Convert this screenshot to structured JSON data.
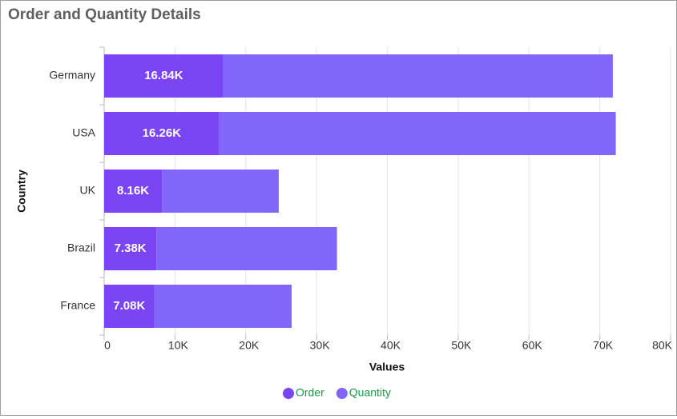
{
  "chart_data": {
    "type": "stacked-bar-horizontal",
    "title": "Order and Quantity Details",
    "x_label": "Values",
    "y_label": "Country",
    "categories": [
      "Germany",
      "USA",
      "UK",
      "Brazil",
      "France"
    ],
    "series": [
      {
        "name": "Order",
        "color": "#7b45f5",
        "values": [
          16840,
          16260,
          8160,
          7380,
          7080
        ],
        "value_labels": [
          "16.84K",
          "16.26K",
          "8.16K",
          "7.38K",
          "7.08K"
        ]
      },
      {
        "name": "Quantity",
        "color": "#8266fa",
        "values": [
          55000,
          56000,
          16500,
          25500,
          19400
        ]
      }
    ],
    "xlim": [
      0,
      80000
    ],
    "xticks": [
      0,
      {
        "value": 10000,
        "label": "10K"
      },
      {
        "value": 20000,
        "label": "20K"
      },
      {
        "value": 30000,
        "label": "30K"
      },
      {
        "value": 40000,
        "label": "40K"
      },
      {
        "value": 50000,
        "label": "50K"
      },
      {
        "value": 60000,
        "label": "60K"
      },
      {
        "value": 70000,
        "label": "70K"
      },
      {
        "value": 80000,
        "label": "80K"
      }
    ],
    "grid": true,
    "legend": "bottom"
  }
}
